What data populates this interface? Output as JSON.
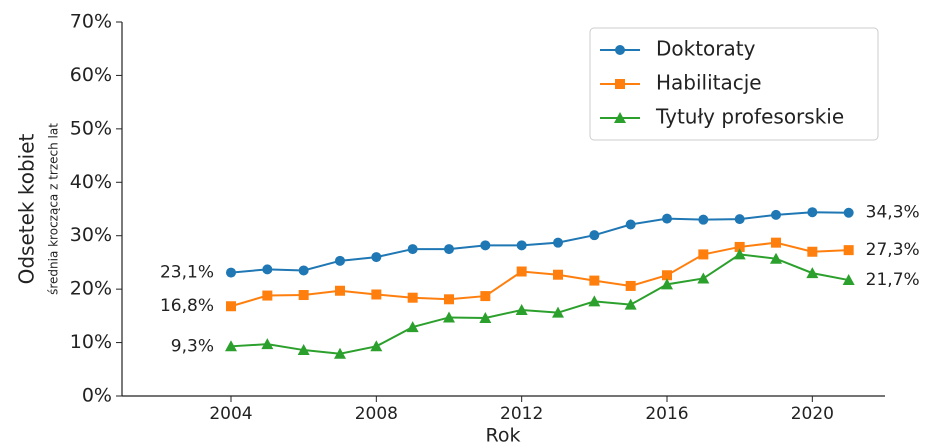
{
  "chart_data": {
    "type": "line",
    "ylabel": "Odsetek kobiet",
    "ylabel_note": "średnia krocząca z trzech lat",
    "xlabel": "Rok",
    "x": [
      2004,
      2005,
      2006,
      2007,
      2008,
      2009,
      2010,
      2011,
      2012,
      2013,
      2014,
      2015,
      2016,
      2017,
      2018,
      2019,
      2020,
      2021
    ],
    "xlim": [
      2001,
      2022
    ],
    "xticks": [
      2004,
      2008,
      2012,
      2016,
      2020
    ],
    "ylim": [
      0,
      70
    ],
    "yticks": [
      {
        "value": 0,
        "label": "0%"
      },
      {
        "value": 10,
        "label": "10%"
      },
      {
        "value": 20,
        "label": "20%"
      },
      {
        "value": 30,
        "label": "30%"
      },
      {
        "value": 40,
        "label": "40%"
      },
      {
        "value": 50,
        "label": "50%"
      },
      {
        "value": 60,
        "label": "60%"
      },
      {
        "value": 70,
        "label": "70%"
      }
    ],
    "grid": false,
    "legend": "upper right",
    "series": [
      {
        "name": "Doktoraty",
        "color": "#1f77b4",
        "marker": "circle",
        "values": [
          23.1,
          23.7,
          23.5,
          25.3,
          26.0,
          27.5,
          27.5,
          28.2,
          28.2,
          28.7,
          30.1,
          32.1,
          33.2,
          33.0,
          33.1,
          33.9,
          34.4,
          34.3
        ],
        "value_labels": [
          "23,1%",
          null,
          null,
          null,
          null,
          null,
          null,
          null,
          null,
          null,
          null,
          null,
          null,
          null,
          null,
          null,
          null,
          "34,3%"
        ]
      },
      {
        "name": "Habilitacje",
        "color": "#ff7f0e",
        "marker": "square",
        "values": [
          16.8,
          18.8,
          18.9,
          19.7,
          19.0,
          18.4,
          18.1,
          18.7,
          23.3,
          22.7,
          21.6,
          20.6,
          22.6,
          26.5,
          27.9,
          28.7,
          27.0,
          27.3
        ],
        "value_labels": [
          "16,8%",
          null,
          null,
          null,
          null,
          null,
          null,
          null,
          null,
          null,
          null,
          null,
          null,
          null,
          null,
          null,
          null,
          "27,3%"
        ]
      },
      {
        "name": "Tytuły profesorskie",
        "color": "#2ca02c",
        "marker": "triangle",
        "values": [
          9.3,
          9.7,
          8.6,
          7.9,
          9.3,
          12.9,
          14.7,
          14.6,
          16.1,
          15.6,
          17.7,
          17.1,
          20.9,
          22.0,
          26.5,
          25.7,
          23.0,
          21.7
        ],
        "value_labels": [
          "9,3%",
          null,
          null,
          null,
          null,
          null,
          null,
          null,
          null,
          null,
          null,
          null,
          null,
          null,
          null,
          null,
          null,
          "21,7%"
        ]
      }
    ]
  }
}
